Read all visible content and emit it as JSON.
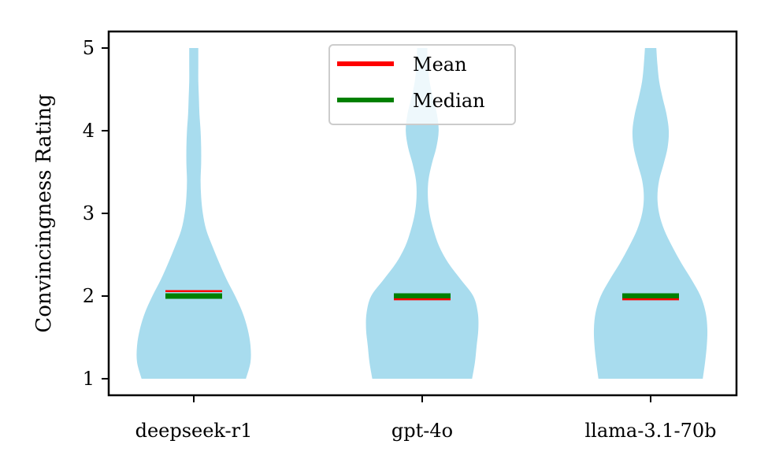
{
  "chart_data": {
    "type": "violin",
    "ylabel": "Convincingness Rating",
    "xlabel": "",
    "ylim": [
      0.8,
      5.2
    ],
    "yticks": [
      1,
      2,
      3,
      4,
      5
    ],
    "categories": [
      "deepseek-r1",
      "gpt-4o",
      "llama-3.1-70b"
    ],
    "violin_color": "#a8dcee",
    "mean_color": "#ff0000",
    "median_color": "#008000",
    "legend": {
      "position": "upper center",
      "entries": [
        {
          "label": "Mean",
          "color": "#ff0000"
        },
        {
          "label": "Median",
          "color": "#008000"
        }
      ]
    },
    "series": [
      {
        "category": "deepseek-r1",
        "mean": 2.04,
        "median": 2.0,
        "density": [
          [
            1.0,
            0.92
          ],
          [
            1.2,
            1.0
          ],
          [
            1.4,
            1.0
          ],
          [
            1.6,
            0.95
          ],
          [
            1.8,
            0.86
          ],
          [
            2.0,
            0.73
          ],
          [
            2.2,
            0.58
          ],
          [
            2.4,
            0.45
          ],
          [
            2.6,
            0.33
          ],
          [
            2.8,
            0.22
          ],
          [
            3.0,
            0.16
          ],
          [
            3.2,
            0.13
          ],
          [
            3.4,
            0.12
          ],
          [
            3.6,
            0.13
          ],
          [
            3.8,
            0.13
          ],
          [
            4.0,
            0.12
          ],
          [
            4.2,
            0.1
          ],
          [
            4.4,
            0.09
          ],
          [
            4.6,
            0.08
          ],
          [
            4.8,
            0.08
          ],
          [
            5.0,
            0.08
          ]
        ]
      },
      {
        "category": "gpt-4o",
        "mean": 1.98,
        "median": 2.0,
        "density": [
          [
            1.0,
            0.88
          ],
          [
            1.2,
            0.93
          ],
          [
            1.4,
            0.96
          ],
          [
            1.6,
            0.99
          ],
          [
            1.8,
            0.98
          ],
          [
            2.0,
            0.9
          ],
          [
            2.2,
            0.68
          ],
          [
            2.4,
            0.46
          ],
          [
            2.6,
            0.3
          ],
          [
            2.8,
            0.2
          ],
          [
            3.0,
            0.13
          ],
          [
            3.2,
            0.1
          ],
          [
            3.4,
            0.11
          ],
          [
            3.6,
            0.17
          ],
          [
            3.8,
            0.25
          ],
          [
            4.0,
            0.29
          ],
          [
            4.2,
            0.26
          ],
          [
            4.4,
            0.19
          ],
          [
            4.6,
            0.13
          ],
          [
            4.8,
            0.1
          ],
          [
            5.0,
            0.09
          ]
        ]
      },
      {
        "category": "llama-3.1-70b",
        "mean": 1.98,
        "median": 2.0,
        "density": [
          [
            1.0,
            0.92
          ],
          [
            1.2,
            0.96
          ],
          [
            1.4,
            0.99
          ],
          [
            1.6,
            1.0
          ],
          [
            1.8,
            0.97
          ],
          [
            2.0,
            0.88
          ],
          [
            2.2,
            0.72
          ],
          [
            2.4,
            0.54
          ],
          [
            2.6,
            0.38
          ],
          [
            2.8,
            0.24
          ],
          [
            3.0,
            0.15
          ],
          [
            3.2,
            0.12
          ],
          [
            3.4,
            0.15
          ],
          [
            3.6,
            0.23
          ],
          [
            3.8,
            0.3
          ],
          [
            4.0,
            0.32
          ],
          [
            4.2,
            0.28
          ],
          [
            4.4,
            0.21
          ],
          [
            4.6,
            0.15
          ],
          [
            4.8,
            0.12
          ],
          [
            5.0,
            0.1
          ]
        ]
      }
    ]
  }
}
